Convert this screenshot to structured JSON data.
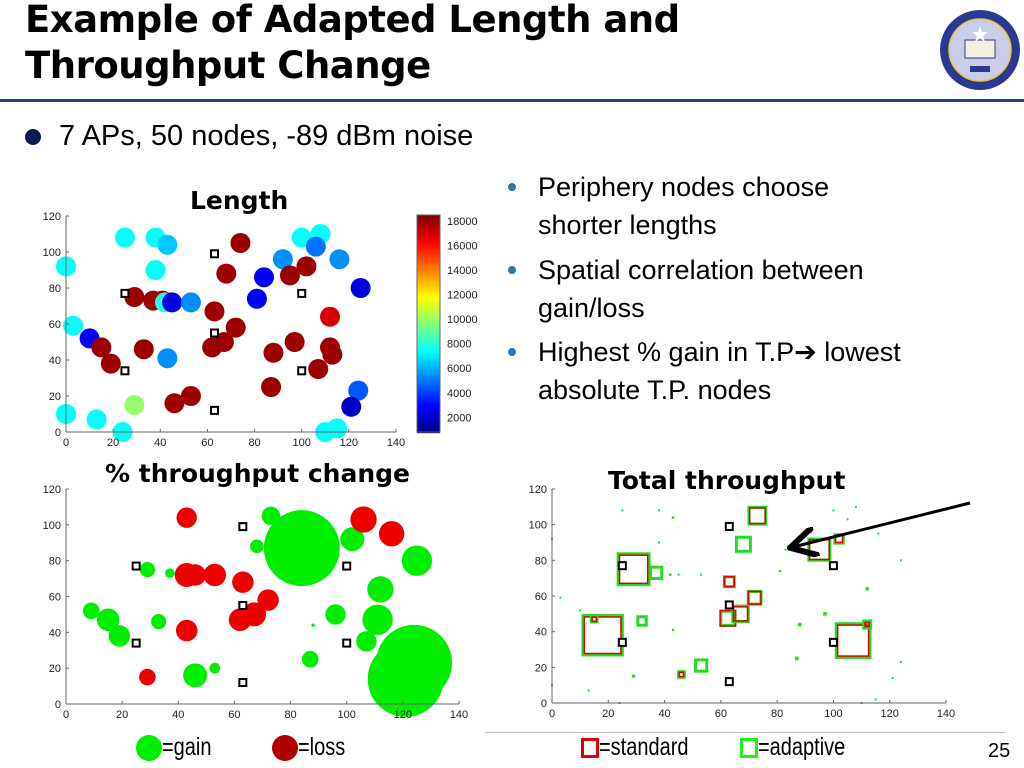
{
  "title": {
    "line1": "Example of Adapted Length and",
    "line2": "Throughput Change"
  },
  "logo_text": "THE UNIVERSITY OF CALIFORNIA BERKELEY 1868",
  "main_bullet": "7 APs, 50 nodes, -89 dBm noise",
  "right_bullets": [
    {
      "line1": "Periphery nodes choose",
      "line2": "shorter lengths"
    },
    {
      "line1": "Spatial correlation between",
      "line2": "gain/loss"
    },
    {
      "line1": "Highest % gain in T.P➔ lowest",
      "line2": "absolute T.P. nodes"
    }
  ],
  "legend": {
    "gain": "=gain",
    "loss": "=loss",
    "standard": "=standard",
    "adaptive": "=adaptive"
  },
  "page_number": "25",
  "colors": {
    "gain": "#00ee00",
    "loss": "#ee0000",
    "loss_legend": "#b00000",
    "standard": "#e00000",
    "adaptive": "#22dd22",
    "rule": "#2b3990"
  },
  "chart_data": [
    {
      "type": "scatter",
      "title": "Length",
      "xlim": [
        0,
        140
      ],
      "ylim": [
        0,
        120
      ],
      "xticks": [
        "0",
        "20",
        "40",
        "60",
        "80",
        "100",
        "120",
        "140"
      ],
      "yticks": [
        "0",
        "20",
        "40",
        "60",
        "80",
        "100",
        "120"
      ],
      "colorbar": {
        "clim": [
          800,
          18500
        ],
        "ticks": [
          "2000",
          "4000",
          "6000",
          "8000",
          "10000",
          "12000",
          "14000",
          "16000",
          "18000"
        ],
        "colormap": "jet"
      },
      "aps": [
        [
          25,
          77
        ],
        [
          63,
          99
        ],
        [
          100,
          77
        ],
        [
          63,
          55
        ],
        [
          25,
          34
        ],
        [
          100,
          34
        ],
        [
          63,
          12
        ]
      ],
      "nodes": [
        [
          25,
          108,
          7500
        ],
        [
          38,
          108,
          7500
        ],
        [
          43,
          104,
          6500
        ],
        [
          0,
          92,
          7500
        ],
        [
          38,
          90,
          7500
        ],
        [
          74,
          105,
          18000
        ],
        [
          68,
          88,
          18000
        ],
        [
          84,
          86,
          3000
        ],
        [
          92,
          96,
          5500
        ],
        [
          100,
          108,
          7500
        ],
        [
          108,
          110,
          7500
        ],
        [
          106,
          103,
          5000
        ],
        [
          116,
          96,
          5500
        ],
        [
          102,
          92,
          18000
        ],
        [
          95,
          87,
          18000
        ],
        [
          125,
          80,
          2500
        ],
        [
          29,
          75,
          18000
        ],
        [
          37,
          73,
          18000
        ],
        [
          41,
          73,
          18000
        ],
        [
          42,
          72,
          8000
        ],
        [
          45,
          72,
          2500
        ],
        [
          53,
          72,
          5500
        ],
        [
          63,
          67,
          18000
        ],
        [
          81,
          74,
          3000
        ],
        [
          112,
          64,
          17000
        ],
        [
          3,
          59,
          7500
        ],
        [
          10,
          52,
          3000
        ],
        [
          15,
          47,
          18000
        ],
        [
          19,
          38,
          18000
        ],
        [
          33,
          46,
          18000
        ],
        [
          43,
          41,
          5500
        ],
        [
          62,
          47,
          18000
        ],
        [
          67,
          50,
          18000
        ],
        [
          72,
          58,
          18000
        ],
        [
          97,
          50,
          18000
        ],
        [
          88,
          44,
          18000
        ],
        [
          112,
          47,
          18000
        ],
        [
          113,
          43,
          18000
        ],
        [
          107,
          35,
          18000
        ],
        [
          87,
          25,
          18000
        ],
        [
          124,
          23,
          4500
        ],
        [
          121,
          14,
          2000
        ],
        [
          29,
          15,
          10000
        ],
        [
          46,
          16,
          18000
        ],
        [
          53,
          20,
          18000
        ],
        [
          0,
          10,
          7500
        ],
        [
          13,
          7,
          7500
        ],
        [
          24,
          0,
          7500
        ],
        [
          110,
          0,
          7500
        ],
        [
          115,
          2,
          7500
        ]
      ]
    },
    {
      "type": "scatter",
      "title": "% throughput change",
      "xlim": [
        0,
        140
      ],
      "ylim": [
        0,
        120
      ],
      "xticks": [
        "0",
        "20",
        "40",
        "60",
        "80",
        "100",
        "120",
        "140"
      ],
      "yticks": [
        "0",
        "20",
        "40",
        "60",
        "80",
        "100",
        "120"
      ],
      "aps": [
        [
          25,
          77
        ],
        [
          63,
          99
        ],
        [
          100,
          77
        ],
        [
          63,
          55
        ],
        [
          25,
          34
        ],
        [
          100,
          34
        ],
        [
          63,
          12
        ]
      ],
      "nodes_pct_change": [
        [
          73,
          105,
          15
        ],
        [
          84,
          87,
          250
        ],
        [
          68,
          88,
          8
        ],
        [
          102,
          92,
          25
        ],
        [
          125,
          80,
          40
        ],
        [
          112,
          64,
          30
        ],
        [
          96,
          50,
          18
        ],
        [
          111,
          47,
          40
        ],
        [
          107,
          35,
          18
        ],
        [
          87,
          25,
          12
        ],
        [
          124,
          23,
          250
        ],
        [
          121,
          14,
          250
        ],
        [
          88,
          44,
          0.5
        ],
        [
          29,
          75,
          10
        ],
        [
          37,
          73,
          4
        ],
        [
          9,
          52,
          12
        ],
        [
          15,
          47,
          22
        ],
        [
          19,
          38,
          20
        ],
        [
          33,
          46,
          10
        ],
        [
          46,
          16,
          25
        ],
        [
          53,
          20,
          5
        ],
        [
          43,
          104,
          -18
        ],
        [
          106,
          103,
          -30
        ],
        [
          116,
          95,
          -28
        ],
        [
          43,
          72,
          -25
        ],
        [
          46,
          72,
          -20
        ],
        [
          53,
          72,
          -22
        ],
        [
          63,
          68,
          -20
        ],
        [
          72,
          58,
          -20
        ],
        [
          67,
          50,
          -25
        ],
        [
          62,
          47,
          -22
        ],
        [
          43,
          41,
          -20
        ],
        [
          29,
          15,
          -12
        ]
      ]
    },
    {
      "type": "scatter",
      "title": "Total throughput",
      "xlim": [
        0,
        140
      ],
      "ylim": [
        0,
        120
      ],
      "xticks": [
        "0",
        "20",
        "40",
        "60",
        "80",
        "100",
        "120",
        "140"
      ],
      "yticks": [
        "0",
        "20",
        "40",
        "60",
        "80",
        "100",
        "120"
      ],
      "aps": [
        [
          25,
          77
        ],
        [
          63,
          99
        ],
        [
          100,
          77
        ],
        [
          63,
          55
        ],
        [
          25,
          34
        ],
        [
          100,
          34
        ],
        [
          63,
          12
        ]
      ],
      "nodes_standard_adaptive": [
        [
          18,
          38,
          13,
          14
        ],
        [
          29,
          75,
          10,
          11
        ],
        [
          107,
          35,
          11,
          12
        ],
        [
          95,
          86,
          7,
          7.5
        ],
        [
          73,
          105,
          5.5,
          6
        ],
        [
          68,
          89,
          0,
          5
        ],
        [
          62.5,
          47.5,
          5.5,
          5
        ],
        [
          67,
          50,
          5,
          5.5
        ],
        [
          72,
          59,
          4.5,
          4.5
        ],
        [
          63,
          68,
          3.5,
          3.5
        ],
        [
          37,
          73,
          0,
          4
        ],
        [
          32,
          46,
          0,
          3
        ],
        [
          53,
          21,
          0,
          4
        ],
        [
          46,
          16,
          1.5,
          2
        ],
        [
          102,
          92,
          2.5,
          3
        ],
        [
          15,
          47,
          1.5,
          2
        ],
        [
          112,
          44,
          1.5,
          2.5
        ],
        [
          97,
          50,
          0,
          1.3
        ],
        [
          87,
          25,
          0,
          1.3
        ],
        [
          88,
          44,
          0,
          1.3
        ],
        [
          112,
          64,
          0,
          1.2
        ],
        [
          29,
          15,
          0,
          1.1
        ],
        [
          43,
          104,
          0,
          0.9
        ],
        [
          43,
          41,
          0,
          0.8
        ],
        [
          81,
          74,
          0,
          0.8
        ],
        [
          83,
          86,
          0,
          0.6
        ],
        [
          92,
          96,
          0,
          0.8
        ],
        [
          116,
          95,
          0,
          0.7
        ],
        [
          105,
          103,
          0,
          0.6
        ],
        [
          124,
          80,
          0,
          0.6
        ],
        [
          124,
          23,
          0,
          0.5
        ],
        [
          121,
          14,
          0,
          0.5
        ],
        [
          53,
          72,
          0,
          0.7
        ],
        [
          45,
          72,
          0,
          0.7
        ],
        [
          42,
          72,
          0,
          0.9
        ],
        [
          10,
          52,
          0,
          0.6
        ],
        [
          3,
          59,
          0,
          0.5
        ],
        [
          13,
          7,
          0,
          0.5
        ],
        [
          0,
          10,
          0,
          0.5
        ],
        [
          0,
          92,
          0,
          0.4
        ],
        [
          25,
          108,
          0,
          0.5
        ],
        [
          38,
          108,
          0,
          0.5
        ],
        [
          38,
          90,
          0,
          0.5
        ],
        [
          100,
          108,
          0,
          0.5
        ],
        [
          108,
          110,
          0,
          0.5
        ],
        [
          115,
          2,
          0,
          0.6
        ],
        [
          110,
          0,
          0,
          0.5
        ],
        [
          24,
          0,
          0,
          0.5
        ]
      ]
    }
  ]
}
